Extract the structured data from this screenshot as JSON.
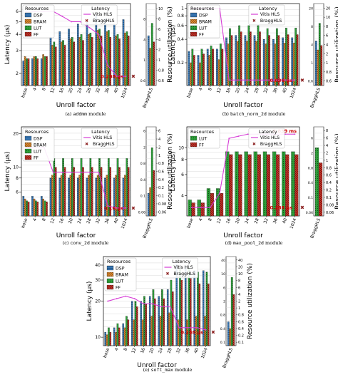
{
  "colors": {
    "dsp": "#3a78b5",
    "bram": "#f0943a",
    "lut": "#2e9e3a",
    "ff": "#c8342a",
    "vitis": "#d63cd6",
    "bragg": "#8b1f1f"
  },
  "shared": {
    "x_label": "Unroll factor",
    "y_label_latency": "Latency (μs)",
    "y_label_resource": "Resource utilization (%)",
    "resources_title": "Resources",
    "latency_title": "Latency",
    "legend_dsp": "DSP",
    "legend_bram": "BRAM",
    "legend_lut": "LUT",
    "legend_ff": "FF",
    "legend_vitis": "Vitis HLS",
    "legend_bragg": "BraggHLS"
  },
  "captions": {
    "a": {
      "prefix": "(a) ",
      "mono": "addmm",
      "suffix": " module"
    },
    "b": {
      "prefix": "(b) ",
      "mono": "batch_norm_2d",
      "suffix": " module"
    },
    "c": {
      "prefix": "(c) ",
      "mono": "conv_2d",
      "suffix": " module"
    },
    "d": {
      "prefix": "(d) ",
      "mono": "max_pool_2d",
      "suffix": " module"
    },
    "e": {
      "prefix": "(e) ",
      "mono": "soft_max",
      "suffix": " module"
    }
  },
  "chart_data": [
    {
      "id": "a",
      "type": "bar",
      "caption": "(a) addmm module",
      "categories": [
        "base",
        "4",
        "8",
        "12",
        "16",
        "20",
        "24",
        "28",
        "32",
        "36",
        "40",
        "1024"
      ],
      "y_ticks": [
        "2",
        "3",
        "4",
        "5",
        "6"
      ],
      "yr_ticks": [
        "0.6",
        "0.8",
        "1",
        "2",
        "4",
        "6",
        "8",
        "10"
      ],
      "legends": [
        "resources",
        "latency"
      ],
      "series": [
        {
          "name": "DSP",
          "values": [
            2.5,
            2.6,
            2.6,
            3.8,
            4.2,
            4.4,
            4.8,
            5.0,
            5.6,
            5.3,
            4.8,
            5.2
          ]
        },
        {
          "name": "BRAM",
          "values": [
            2.7,
            2.7,
            2.8,
            3.3,
            3.5,
            3.7,
            3.8,
            4.0,
            4.3,
            4.2,
            3.9,
            4.1
          ]
        },
        {
          "name": "LUT",
          "values": [
            2.6,
            2.7,
            2.7,
            3.5,
            3.6,
            3.8,
            4.0,
            4.1,
            4.4,
            4.3,
            4.0,
            4.2
          ]
        },
        {
          "name": "FF",
          "values": [
            2.6,
            2.6,
            2.7,
            3.2,
            3.3,
            3.5,
            3.6,
            3.8,
            3.9,
            3.8,
            3.7,
            3.9
          ]
        }
      ],
      "vitis_latency": [
        6.0,
        6.0,
        6.0,
        6.0,
        5.5,
        5.0,
        5.0,
        4.5,
        4.0,
        2.3,
        1.9,
        1.9
      ],
      "bragg_value": 1.9,
      "bragg_label": "0.288 μs",
      "bragg_bar_label": "BraggHLS",
      "bragg_bars": [
        8,
        6,
        10,
        7
      ]
    },
    {
      "id": "b",
      "type": "bar",
      "caption": "(b) batch_norm_2d module",
      "categories": [
        "base",
        "4",
        "8",
        "12",
        "16",
        "20",
        "24",
        "28",
        "32",
        "36",
        "40",
        "1024"
      ],
      "y_ticks": [
        "0.2",
        "0.4",
        "0.6",
        "0.8",
        "1"
      ],
      "yr_ticks": [
        "0.6",
        "0.8",
        "1",
        "2",
        "4",
        "6",
        "8",
        "10",
        "20"
      ],
      "legends": [
        "resources",
        "latency"
      ],
      "series": [
        {
          "name": "DSP",
          "values": [
            0.28,
            0.25,
            0.3,
            0.3,
            0.42,
            0.45,
            0.45,
            0.45,
            0.4,
            0.4,
            0.42,
            0.42
          ]
        },
        {
          "name": "BRAM",
          "values": [
            0.2,
            0.2,
            0.25,
            0.22,
            0.35,
            0.38,
            0.38,
            0.38,
            0.35,
            0.35,
            0.36,
            0.36
          ]
        },
        {
          "name": "LUT",
          "values": [
            0.3,
            0.3,
            0.33,
            0.35,
            0.55,
            0.6,
            0.6,
            0.6,
            0.55,
            0.55,
            0.56,
            0.56
          ]
        },
        {
          "name": "FF",
          "values": [
            0.25,
            0.26,
            0.3,
            0.3,
            0.45,
            0.5,
            0.5,
            0.5,
            0.45,
            0.45,
            0.46,
            0.46
          ]
        }
      ],
      "vitis_latency": [
        1.0,
        1.0,
        1.0,
        1.0,
        0.12,
        0.12,
        0.12,
        0.12,
        0.12,
        0.12,
        0.12,
        0.12
      ],
      "bragg_value": 0.12,
      "bragg_label": "0.036 μs",
      "bragg_bar_label": "BraggHLS",
      "bragg_bars": [
        10,
        8,
        14,
        9
      ]
    },
    {
      "id": "c",
      "type": "bar",
      "caption": "(c) conv_2d module",
      "categories": [
        "base",
        "4",
        "8",
        "12",
        "16",
        "20",
        "24",
        "28",
        "32",
        "36",
        "40",
        "1024"
      ],
      "y_ticks": [
        "6",
        "8",
        "10",
        "20"
      ],
      "yr_ticks": [
        "0.06",
        "0.08",
        "0.1",
        "0.2",
        "0.4",
        "0.6",
        "0.8",
        "1",
        "2",
        "4",
        "6"
      ],
      "legends": [
        "resources",
        "latency"
      ],
      "series": [
        {
          "name": "DSP",
          "values": [
            5.5,
            5.5,
            5.5,
            8,
            8,
            8,
            8,
            8,
            8,
            8,
            8,
            8
          ]
        },
        {
          "name": "BRAM",
          "values": [
            5.2,
            5.2,
            5.2,
            8.5,
            8.5,
            8.5,
            8.5,
            8.5,
            8.5,
            8.5,
            8.5,
            8.5
          ]
        },
        {
          "name": "LUT",
          "values": [
            5.0,
            5.0,
            5.0,
            12,
            12,
            12,
            12,
            12,
            12,
            12,
            12,
            12
          ]
        },
        {
          "name": "FF",
          "values": [
            4.9,
            4.9,
            4.9,
            10,
            10,
            10,
            10,
            10,
            10,
            10,
            10,
            10
          ]
        }
      ],
      "vitis_latency": [
        15,
        15,
        15,
        9,
        9,
        9,
        9,
        9,
        9,
        4.5,
        4.3,
        4.3
      ],
      "bragg_value": 4.3,
      "bragg_label": "0.16 μs",
      "bragg_bar_label": "BraggHLS",
      "bragg_bars": [
        4,
        5,
        12,
        8
      ]
    },
    {
      "id": "d",
      "type": "bar",
      "caption": "(d) max_pool_2d module",
      "categories": [
        "base",
        "4",
        "8",
        "12",
        "16",
        "20",
        "24",
        "28",
        "32",
        "36",
        "40",
        "1024"
      ],
      "y_ticks": [
        "4",
        "6",
        "8",
        "10"
      ],
      "yr_ticks": [
        "0.06",
        "0.08",
        "0.1",
        "0.2",
        "0.4",
        "0.6",
        "0.8",
        "1",
        "2",
        "4",
        "6",
        "8"
      ],
      "legends": [
        "resources",
        "latency"
      ],
      "series": [
        {
          "name": "LUT",
          "values": [
            3.7,
            3.7,
            4.6,
            4.6,
            9.3,
            9.3,
            9.3,
            9.3,
            9.3,
            9.3,
            9.3,
            9.3
          ]
        },
        {
          "name": "FF",
          "values": [
            3.5,
            3.5,
            4.2,
            4.2,
            8.8,
            8.8,
            8.8,
            8.8,
            8.8,
            8.8,
            8.8,
            8.8
          ]
        }
      ],
      "vitis_latency": [
        3.2,
        3.2,
        3.2,
        4.2,
        12,
        12.5,
        13,
        13,
        13,
        13,
        13,
        13
      ],
      "bragg_value": 3.2,
      "bragg_label": "0.288 μs",
      "bragg_bar_label": "BraggHLS",
      "top_label": "8.839 ms",
      "bragg_bars": [
        9,
        7
      ]
    },
    {
      "id": "e",
      "type": "bar",
      "caption": "(e) soft_max module",
      "categories": [
        "base",
        "4",
        "8",
        "12",
        "16",
        "20",
        "24",
        "28",
        "32",
        "36",
        "40",
        "1024"
      ],
      "y_ticks": [
        "10",
        "20",
        "30",
        "40"
      ],
      "yr_ticks": [
        "0.1",
        "0.2",
        "0.4",
        "0.6",
        "0.8",
        "1",
        "2",
        "4",
        "6",
        "8",
        "10",
        "20",
        "40"
      ],
      "legends": [
        "resources",
        "latency"
      ],
      "series": [
        {
          "name": "DSP",
          "values": [
            11,
            12,
            13,
            20,
            20,
            22,
            22,
            25,
            41,
            39,
            36,
            36
          ]
        },
        {
          "name": "BRAM",
          "values": [
            10.5,
            11,
            12,
            14,
            14,
            15,
            15,
            16,
            14,
            14,
            15,
            15
          ]
        },
        {
          "name": "LUT",
          "values": [
            12,
            13,
            15,
            20,
            22,
            25,
            25,
            30,
            37,
            38,
            35,
            35
          ]
        },
        {
          "name": "FF",
          "values": [
            11,
            12,
            14,
            18,
            19,
            21,
            21,
            24,
            30,
            31,
            28,
            28
          ]
        }
      ],
      "vitis_latency": [
        20,
        21,
        22,
        21,
        19,
        19,
        18,
        18,
        12,
        12,
        12,
        11.5
      ],
      "bragg_value": 11,
      "bragg_label": "0.288 μs",
      "bragg_bar_label": "BraggHLS",
      "bragg_bars": [
        14,
        10,
        40,
        30
      ]
    }
  ]
}
